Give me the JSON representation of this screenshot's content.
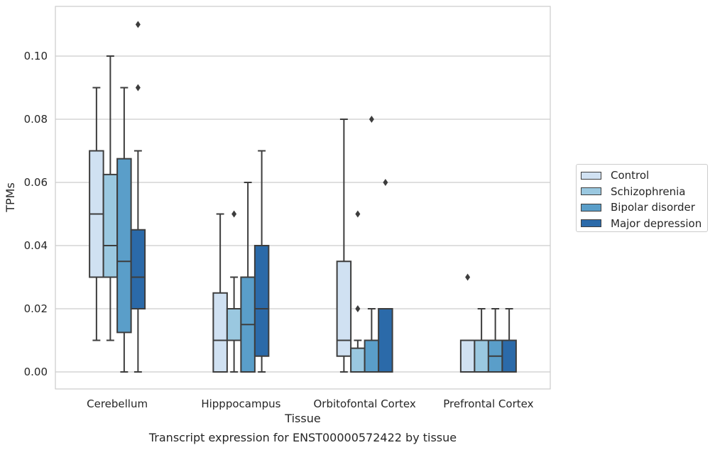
{
  "chart_data": {
    "type": "boxplot",
    "title": "",
    "caption": "Transcript expression for ENST00000572422 by tissue",
    "xlabel": "Tissue",
    "ylabel": "TPMs",
    "ylim": [
      -0.0055,
      0.1155
    ],
    "yticks": [
      "0.00",
      "0.02",
      "0.04",
      "0.06",
      "0.08",
      "0.10"
    ],
    "grid": "horizontal",
    "legend_position": "right",
    "categories": [
      "Cerebellum",
      "Hipppocampus",
      "Orbitofontal Cortex",
      "Prefrontal Cortex"
    ],
    "series": [
      {
        "name": "Control",
        "color": "#d0e1f2",
        "boxes": [
          {
            "whislo": 0.01,
            "q1": 0.03,
            "med": 0.05,
            "q3": 0.07,
            "whishi": 0.09,
            "fliers": []
          },
          {
            "whislo": 0.0,
            "q1": 0.0,
            "med": 0.01,
            "q3": 0.025,
            "whishi": 0.05,
            "fliers": []
          },
          {
            "whislo": 0.0,
            "q1": 0.005,
            "med": 0.01,
            "q3": 0.035,
            "whishi": 0.08,
            "fliers": []
          },
          {
            "whislo": 0.0,
            "q1": 0.0,
            "med": 0.01,
            "q3": 0.01,
            "whishi": 0.01,
            "fliers": [
              0.03
            ]
          }
        ]
      },
      {
        "name": "Schizophrenia",
        "color": "#9ac8e0",
        "boxes": [
          {
            "whislo": 0.01,
            "q1": 0.03,
            "med": 0.04,
            "q3": 0.0625,
            "whishi": 0.1,
            "fliers": []
          },
          {
            "whislo": 0.0,
            "q1": 0.01,
            "med": 0.01,
            "q3": 0.02,
            "whishi": 0.03,
            "fliers": [
              0.05
            ]
          },
          {
            "whislo": 0.0,
            "q1": 0.0,
            "med": 0.0,
            "q3": 0.0075,
            "whishi": 0.01,
            "fliers": [
              0.02,
              0.05
            ]
          },
          {
            "whislo": 0.0,
            "q1": 0.0,
            "med": 0.01,
            "q3": 0.01,
            "whishi": 0.02,
            "fliers": []
          }
        ]
      },
      {
        "name": "Bipolar disorder",
        "color": "#5a9ec9",
        "boxes": [
          {
            "whislo": 0.0,
            "q1": 0.0125,
            "med": 0.035,
            "q3": 0.0675,
            "whishi": 0.09,
            "fliers": []
          },
          {
            "whislo": 0.0,
            "q1": 0.0,
            "med": 0.015,
            "q3": 0.03,
            "whishi": 0.06,
            "fliers": []
          },
          {
            "whislo": 0.0,
            "q1": 0.0,
            "med": 0.0,
            "q3": 0.01,
            "whishi": 0.02,
            "fliers": [
              0.08
            ]
          },
          {
            "whislo": 0.0,
            "q1": 0.0,
            "med": 0.005,
            "q3": 0.01,
            "whishi": 0.02,
            "fliers": []
          }
        ]
      },
      {
        "name": "Major depression",
        "color": "#2b6aa9",
        "boxes": [
          {
            "whislo": 0.0,
            "q1": 0.02,
            "med": 0.03,
            "q3": 0.045,
            "whishi": 0.07,
            "fliers": [
              0.09,
              0.11
            ]
          },
          {
            "whislo": 0.0,
            "q1": 0.005,
            "med": 0.02,
            "q3": 0.04,
            "whishi": 0.07,
            "fliers": []
          },
          {
            "whislo": 0.0,
            "q1": 0.0,
            "med": 0.02,
            "q3": 0.02,
            "whishi": 0.02,
            "fliers": [
              0.06
            ]
          },
          {
            "whislo": 0.0,
            "q1": 0.0,
            "med": 0.01,
            "q3": 0.01,
            "whishi": 0.02,
            "fliers": []
          }
        ]
      }
    ]
  }
}
